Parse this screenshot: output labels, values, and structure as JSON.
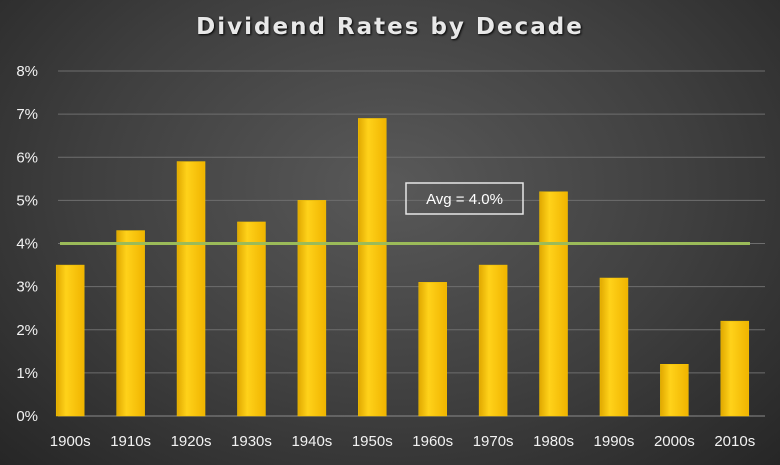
{
  "chart_data": {
    "type": "bar",
    "title": "Dividend Rates by Decade",
    "categories": [
      "1900s",
      "1910s",
      "1920s",
      "1930s",
      "1940s",
      "1950s",
      "1960s",
      "1970s",
      "1980s",
      "1990s",
      "2000s",
      "2010s"
    ],
    "values": [
      3.5,
      4.3,
      5.9,
      4.5,
      5.0,
      6.9,
      3.1,
      3.5,
      5.2,
      3.2,
      1.2,
      2.2
    ],
    "ylim": [
      0,
      8
    ],
    "yticks": [
      "0%",
      "1%",
      "2%",
      "3%",
      "4%",
      "5%",
      "6%",
      "7%",
      "8%"
    ],
    "grid": true,
    "average_line": {
      "value": 4.0,
      "label": "Avg = 4.0%"
    },
    "colors": {
      "bar": "#ffc000",
      "bar_edge": "#f5c400",
      "avg_line": "#9bbb59",
      "gridline": "#6e6e6e"
    }
  }
}
